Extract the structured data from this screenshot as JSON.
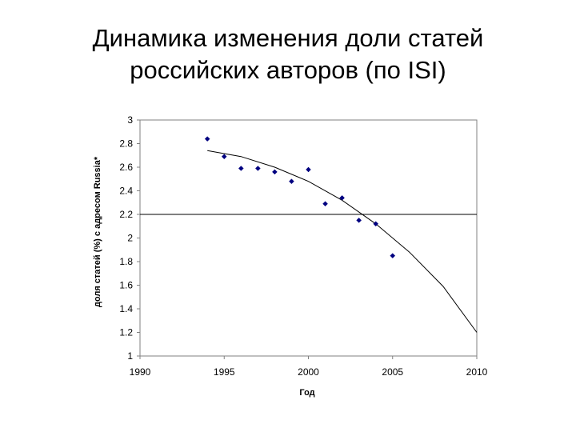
{
  "slide": {
    "title_line1": "Динамика изменения доли статей",
    "title_line2": "российских авторов (по ISI)"
  },
  "chart_data": {
    "type": "scatter",
    "xlabel": "Год",
    "ylabel": "доля статей (%) с адресом Russia*",
    "xlim": [
      1990,
      2010
    ],
    "ylim": [
      1,
      3
    ],
    "x_ticks": [
      "1990",
      "1995",
      "2000",
      "2005",
      "2010"
    ],
    "y_ticks": [
      "1",
      "1.2",
      "1.4",
      "1.6",
      "1.8",
      "2",
      "2.2",
      "2.4",
      "2.6",
      "2.8",
      "3"
    ],
    "grid": false,
    "legend": "none",
    "series": [
      {
        "points": [
          {
            "x": 1994,
            "y": 2.84
          },
          {
            "x": 1995,
            "y": 2.69
          },
          {
            "x": 1996,
            "y": 2.59
          },
          {
            "x": 1997,
            "y": 2.59
          },
          {
            "x": 1998,
            "y": 2.56
          },
          {
            "x": 1999,
            "y": 2.48
          },
          {
            "x": 2000,
            "y": 2.58
          },
          {
            "x": 2001,
            "y": 2.29
          },
          {
            "x": 2002,
            "y": 2.34
          },
          {
            "x": 2003,
            "y": 2.15
          },
          {
            "x": 2004,
            "y": 2.12
          },
          {
            "x": 2005,
            "y": 1.85
          }
        ]
      }
    ],
    "trendline": {
      "x": [
        1994,
        1996,
        1998,
        2000,
        2002,
        2004,
        2006,
        2008,
        2010
      ],
      "y": [
        2.74,
        2.69,
        2.6,
        2.48,
        2.32,
        2.12,
        1.88,
        1.59,
        1.2
      ]
    },
    "reference_line_y": 2.2,
    "colors": {
      "marker": "#000080",
      "line": "#000000",
      "axis": "#808080"
    }
  }
}
